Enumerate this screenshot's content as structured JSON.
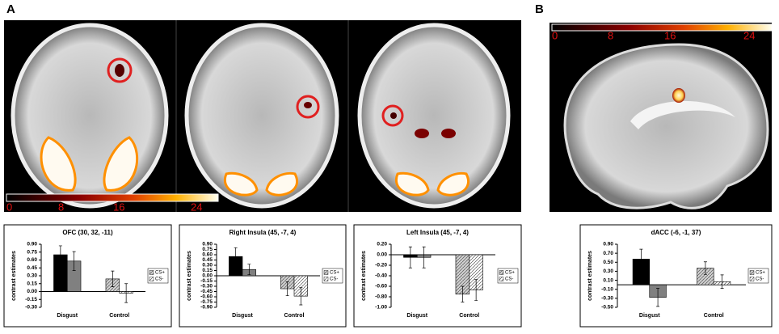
{
  "panel_labels": [
    "A",
    "B"
  ],
  "colorbars": [
    [
      "0",
      "8",
      "16",
      "24"
    ],
    [
      "0",
      "8",
      "16",
      "24"
    ]
  ],
  "chart_data": [
    {
      "type": "bar",
      "title": "OFC (30, 32, -11)",
      "y_label": "contrast estimates",
      "categories": [
        "Disgust",
        "Control"
      ],
      "hatched": [
        false,
        true
      ],
      "legend": "right",
      "series": [
        {
          "name": "CS+",
          "colors": [
            "#000000",
            "#d0d0d0"
          ],
          "values": [
            0.7,
            0.24
          ],
          "errors": [
            0.17,
            0.15
          ]
        },
        {
          "name": "CS-",
          "colors": [
            "#808080",
            "#ffffff"
          ],
          "values": [
            0.58,
            -0.03
          ],
          "errors": [
            0.18,
            0.18
          ]
        }
      ],
      "ylim": [
        -0.3,
        0.9
      ],
      "yticks": [
        {
          "value": 0.9,
          "label": "0.90"
        },
        {
          "value": 0.75,
          "label": "0.75"
        },
        {
          "value": 0.6,
          "label": "0.60"
        },
        {
          "value": 0.45,
          "label": "0.45"
        },
        {
          "value": 0.3,
          "label": "0.30"
        },
        {
          "value": 0.15,
          "label": "0.15"
        },
        {
          "value": 0,
          "label": "0.00"
        },
        {
          "value": -0.15,
          "label": "-0.15"
        },
        {
          "value": -0.3,
          "label": "-0.30"
        }
      ]
    },
    {
      "type": "bar",
      "title": "Right Insula (45, -7, 4)",
      "y_label": "contrast estimates",
      "categories": [
        "Disgust",
        "Control"
      ],
      "hatched": [
        false,
        true
      ],
      "legend": "right",
      "series": [
        {
          "name": "CS+",
          "colors": [
            "#000000",
            "#d0d0d0"
          ],
          "values": [
            0.55,
            -0.37
          ],
          "errors": [
            0.25,
            0.2
          ]
        },
        {
          "name": "CS-",
          "colors": [
            "#808080",
            "#ffffff"
          ],
          "values": [
            0.18,
            -0.58
          ],
          "errors": [
            0.15,
            0.25
          ]
        }
      ],
      "ylim": [
        -0.9,
        0.9
      ],
      "yticks": [
        {
          "value": 0.9,
          "label": "0.90"
        },
        {
          "value": 0.75,
          "label": "0.75"
        },
        {
          "value": 0.6,
          "label": "0.60"
        },
        {
          "value": 0.45,
          "label": "0.45"
        },
        {
          "value": 0.3,
          "label": "0.30"
        },
        {
          "value": 0.15,
          "label": "0.15"
        },
        {
          "value": 0,
          "label": "0.00"
        },
        {
          "value": -0.15,
          "label": "-0.15"
        },
        {
          "value": -0.3,
          "label": "-0.30"
        },
        {
          "value": -0.45,
          "label": "-0.45"
        },
        {
          "value": -0.6,
          "label": "-0.60"
        },
        {
          "value": -0.75,
          "label": "-0.75"
        },
        {
          "value": -0.9,
          "label": "-0.90"
        }
      ]
    },
    {
      "type": "bar",
      "title": "Left Insula (45, -7, 4)",
      "y_label": "contrast estimates",
      "categories": [
        "Disgust",
        "Control"
      ],
      "hatched": [
        false,
        true
      ],
      "legend": "right",
      "series": [
        {
          "name": "CS+",
          "colors": [
            "#000000",
            "#d0d0d0"
          ],
          "values": [
            -0.05,
            -0.75
          ],
          "errors": [
            0.2,
            0.15
          ]
        },
        {
          "name": "CS-",
          "colors": [
            "#808080",
            "#ffffff"
          ],
          "values": [
            -0.05,
            -0.67
          ],
          "errors": [
            0.2,
            0.2
          ]
        }
      ],
      "ylim": [
        -1.0,
        0.2
      ],
      "yticks": [
        {
          "value": 0.2,
          "label": "0.20"
        },
        {
          "value": 0,
          "label": "0.00"
        },
        {
          "value": -0.2,
          "label": "-0.20"
        },
        {
          "value": -0.4,
          "label": "-0.40"
        },
        {
          "value": -0.6,
          "label": "-0.60"
        },
        {
          "value": -0.8,
          "label": "-0.80"
        },
        {
          "value": -1,
          "label": "-1.00"
        }
      ]
    },
    {
      "type": "bar",
      "title": "dACC (-6, -1, 37)",
      "y_label": "contrast estimates",
      "categories": [
        "Disgust",
        "Control"
      ],
      "hatched": [
        false,
        true
      ],
      "legend": "right",
      "series": [
        {
          "name": "CS+",
          "colors": [
            "#000000",
            "#d0d0d0"
          ],
          "values": [
            0.57,
            0.37
          ],
          "errors": [
            0.22,
            0.14
          ]
        },
        {
          "name": "CS-",
          "colors": [
            "#808080",
            "#ffffff"
          ],
          "values": [
            -0.28,
            0.07
          ],
          "errors": [
            0.2,
            0.15
          ]
        }
      ],
      "ylim": [
        -0.5,
        0.9
      ],
      "yticks": [
        {
          "value": 0.9,
          "label": "0.90"
        },
        {
          "value": 0.7,
          "label": "0.70"
        },
        {
          "value": 0.5,
          "label": "0.50"
        },
        {
          "value": 0.3,
          "label": "0.30"
        },
        {
          "value": 0.1,
          "label": "0.10"
        },
        {
          "value": -0.1,
          "label": "-0.10"
        },
        {
          "value": -0.3,
          "label": "-0.30"
        },
        {
          "value": -0.5,
          "label": "-0.50"
        }
      ]
    }
  ]
}
